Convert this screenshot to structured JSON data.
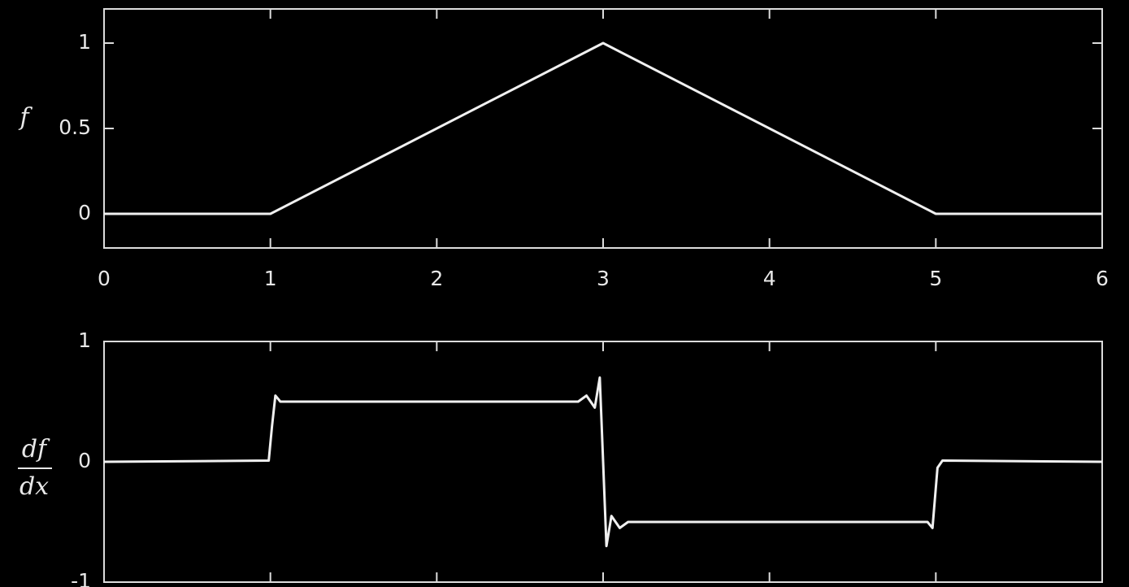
{
  "chart_data": [
    {
      "type": "line",
      "ylabel": "f",
      "x": [
        0,
        1,
        3,
        5,
        6
      ],
      "values": [
        0,
        0,
        1,
        0,
        0
      ],
      "color": "#f0f0f0",
      "xlim": [
        0,
        6
      ],
      "ylim": [
        -0.2,
        1.2
      ],
      "xticks": [
        0,
        1,
        2,
        3,
        4,
        5,
        6
      ],
      "yticks": [
        0,
        0.5,
        1
      ],
      "xtick_labels": true,
      "grid": false
    },
    {
      "type": "line",
      "ylabel": [
        "df",
        "dx"
      ],
      "x": [
        0,
        0.99,
        1.01,
        1.03,
        1.06,
        2.85,
        2.9,
        2.95,
        2.98,
        3.0,
        3.02,
        3.05,
        3.1,
        3.15,
        4.95,
        4.98,
        5.01,
        5.04,
        6
      ],
      "values": [
        0,
        0.01,
        0.3,
        0.55,
        0.5,
        0.5,
        0.55,
        0.45,
        0.7,
        0,
        -0.7,
        -0.45,
        -0.55,
        -0.5,
        -0.5,
        -0.55,
        -0.05,
        0.01,
        0
      ],
      "color": "#f0f0f0",
      "xlim": [
        0,
        6
      ],
      "ylim": [
        -1,
        1
      ],
      "xticks": [
        0,
        1,
        2,
        3,
        4,
        5,
        6
      ],
      "yticks": [
        -1,
        0,
        1
      ],
      "xtick_labels": false,
      "grid": false
    }
  ]
}
